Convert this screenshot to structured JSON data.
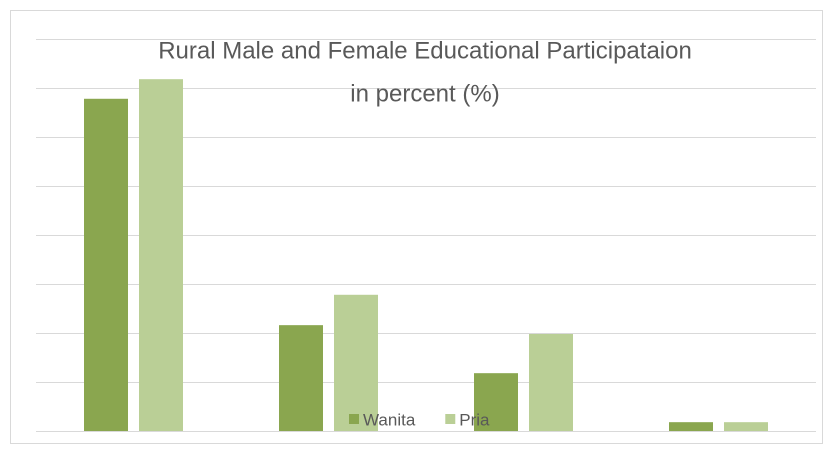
{
  "chart_data": {
    "type": "bar",
    "title": [
      "Rural Male and Female Educational Participataion",
      "in percent (%)"
    ],
    "categories": [
      null,
      null,
      null,
      null
    ],
    "series": [
      {
        "name": "Wanita",
        "color": "#8aa64f",
        "values": [
          67.8,
          21.6,
          11.8,
          1.8
        ]
      },
      {
        "name": "Pria",
        "color": "#bacf96",
        "values": [
          71.8,
          27.8,
          19.8,
          1.8
        ]
      }
    ],
    "ylim": [
      0,
      80
    ],
    "yticks": [
      0,
      10,
      20,
      30,
      40,
      50,
      60,
      70,
      80
    ],
    "grid": true,
    "legend": "bottom"
  }
}
